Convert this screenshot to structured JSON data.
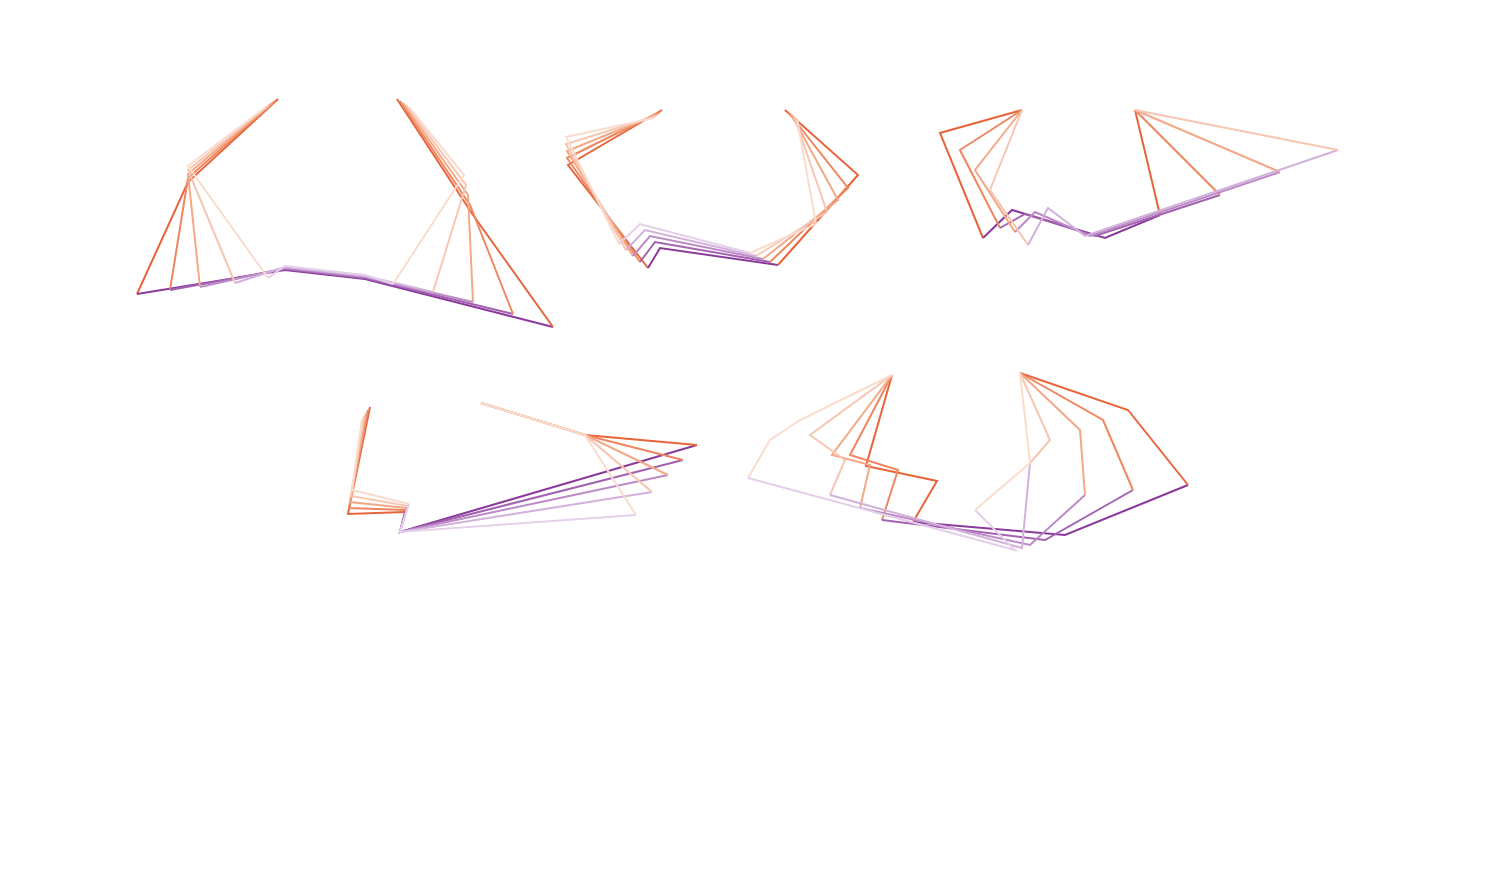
{
  "chart_data": {
    "type": "line",
    "xlim": [
      0,
      1500
    ],
    "ylim": [
      877,
      0
    ],
    "grid": false,
    "tick_labels": false,
    "series": [
      {
        "values": [
          [
            266,
            107
          ],
          [
            188,
            166
          ],
          [
            268,
            278
          ],
          [
            285,
            266
          ],
          [
            365,
            275
          ],
          [
            393,
            284
          ],
          [
            464,
            175
          ],
          [
            409,
            107
          ]
        ],
        "colors": [
          "#fadccf",
          "#fadccf",
          "#e4d0ea",
          "#e4d0ea",
          "#e4d0ea",
          "#fadccf",
          "#fadccf",
          "#fadccf"
        ]
      },
      {
        "values": [
          [
            269,
            105
          ],
          [
            188,
            170
          ],
          [
            235,
            283
          ],
          [
            285,
            267
          ],
          [
            365,
            276
          ],
          [
            433,
            292
          ],
          [
            466,
            185
          ],
          [
            406,
            105
          ]
        ],
        "colors": [
          "#f7c6b0",
          "#f7c6b0",
          "#d2b1dc",
          "#d2b1dc",
          "#d2b1dc",
          "#f7c6b0",
          "#f7c6b0",
          "#f7c6b0"
        ]
      },
      {
        "values": [
          [
            272,
            103
          ],
          [
            188,
            174
          ],
          [
            200,
            287
          ],
          [
            285,
            268
          ],
          [
            365,
            277
          ],
          [
            473,
            302
          ],
          [
            468,
            195
          ],
          [
            403,
            103
          ]
        ],
        "colors": [
          "#f3a887",
          "#f3a887",
          "#bb8ac7",
          "#bb8ac7",
          "#bb8ac7",
          "#f3a887",
          "#f3a887",
          "#f3a887"
        ]
      },
      {
        "values": [
          [
            275,
            101
          ],
          [
            188,
            178
          ],
          [
            170,
            290
          ],
          [
            285,
            269
          ],
          [
            365,
            278
          ],
          [
            513,
            314
          ],
          [
            470,
            205
          ],
          [
            400,
            101
          ]
        ],
        "colors": [
          "#ee875f",
          "#ee875f",
          "#a262b0",
          "#a262b0",
          "#a262b0",
          "#ee875f",
          "#ee875f",
          "#ee875f"
        ]
      },
      {
        "values": [
          [
            278,
            99
          ],
          [
            188,
            182
          ],
          [
            137,
            294
          ],
          [
            285,
            270
          ],
          [
            365,
            279
          ],
          [
            553,
            327
          ],
          [
            473,
            215
          ],
          [
            397,
            99
          ]
        ],
        "colors": [
          "#e8643a",
          "#e8643a",
          "#8b3a9c",
          "#8b3a9c",
          "#8b3a9c",
          "#e8643a",
          "#e8643a",
          "#e8643a"
        ]
      },
      {
        "values": [
          [
            654,
            118
          ],
          [
            566,
            137
          ],
          [
            619,
            244
          ],
          [
            640,
            224
          ],
          [
            750,
            253
          ],
          [
            816,
            224
          ],
          [
            797,
            118
          ]
        ],
        "colors": [
          "#fadccf",
          "#fadccf",
          "#e4d0ea",
          "#e4d0ea",
          "#fadccf",
          "#fadccf",
          "#fadccf"
        ]
      },
      {
        "values": [
          [
            656,
            116
          ],
          [
            566,
            144
          ],
          [
            626,
            250
          ],
          [
            645,
            230
          ],
          [
            756,
            256
          ],
          [
            827,
            212
          ],
          [
            794,
            116
          ]
        ],
        "colors": [
          "#f7c6b0",
          "#f7c6b0",
          "#d2b1dc",
          "#d2b1dc",
          "#f7c6b0",
          "#f7c6b0",
          "#f7c6b0"
        ]
      },
      {
        "values": [
          [
            658,
            114
          ],
          [
            567,
            151
          ],
          [
            633,
            256
          ],
          [
            650,
            236
          ],
          [
            763,
            259
          ],
          [
            838,
            200
          ],
          [
            791,
            114
          ]
        ],
        "colors": [
          "#f3a887",
          "#f3a887",
          "#bb8ac7",
          "#bb8ac7",
          "#f3a887",
          "#f3a887",
          "#f3a887"
        ]
      },
      {
        "values": [
          [
            660,
            112
          ],
          [
            567,
            158
          ],
          [
            640,
            262
          ],
          [
            655,
            242
          ],
          [
            770,
            262
          ],
          [
            848,
            188
          ],
          [
            788,
            112
          ]
        ],
        "colors": [
          "#ee875f",
          "#ee875f",
          "#a262b0",
          "#a262b0",
          "#ee875f",
          "#ee875f",
          "#ee875f"
        ]
      },
      {
        "values": [
          [
            662,
            110
          ],
          [
            568,
            165
          ],
          [
            648,
            268
          ],
          [
            660,
            248
          ],
          [
            778,
            265
          ],
          [
            858,
            175
          ],
          [
            785,
            110
          ]
        ],
        "colors": [
          "#e8643a",
          "#e8643a",
          "#8b3a9c",
          "#8b3a9c",
          "#e8643a",
          "#e8643a",
          "#e8643a"
        ]
      },
      {
        "values": [
          [
            1022,
            110
          ],
          [
            990,
            190
          ],
          [
            1028,
            245
          ],
          [
            1048,
            208
          ],
          [
            1085,
            236
          ],
          [
            1338,
            150
          ],
          [
            1135,
            110
          ]
        ],
        "colors": [
          "#f7c6b0",
          "#f7c6b0",
          "#d2b1dc",
          "#d2b1dc",
          "#d2b1dc",
          "#f7c6b0",
          "#f7c6b0"
        ]
      },
      {
        "values": [
          [
            1022,
            110
          ],
          [
            975,
            170
          ],
          [
            1015,
            232
          ],
          [
            1035,
            212
          ],
          [
            1090,
            236
          ],
          [
            1280,
            172
          ],
          [
            1135,
            110
          ]
        ],
        "colors": [
          "#f3a887",
          "#f3a887",
          "#bb8ac7",
          "#bb8ac7",
          "#bb8ac7",
          "#f3a887",
          "#f3a887"
        ]
      },
      {
        "values": [
          [
            1022,
            110
          ],
          [
            960,
            150
          ],
          [
            1000,
            228
          ],
          [
            1025,
            214
          ],
          [
            1095,
            236
          ],
          [
            1220,
            195
          ],
          [
            1135,
            110
          ]
        ],
        "colors": [
          "#ee875f",
          "#ee875f",
          "#a262b0",
          "#a262b0",
          "#a262b0",
          "#ee875f",
          "#ee875f"
        ]
      },
      {
        "values": [
          [
            1022,
            110
          ],
          [
            940,
            133
          ],
          [
            983,
            238
          ],
          [
            1012,
            210
          ],
          [
            1105,
            238
          ],
          [
            1160,
            215
          ],
          [
            1135,
            110
          ]
        ],
        "colors": [
          "#e8643a",
          "#e8643a",
          "#8b3a9c",
          "#8b3a9c",
          "#8b3a9c",
          "#e8643a",
          "#e8643a"
        ]
      },
      {
        "values": [
          [
            362,
            419
          ],
          [
            352,
            490
          ],
          [
            409,
            504
          ],
          [
            400,
            532
          ],
          [
            636,
            515
          ],
          [
            585,
            435
          ],
          [
            481,
            403
          ]
        ],
        "colors": [
          "#fadccf",
          "#fadccf",
          "#e4d0ea",
          "#e4d0ea",
          "#fadccf",
          "#fadccf",
          "#fadccf"
        ]
      },
      {
        "values": [
          [
            364,
            416
          ],
          [
            351,
            496
          ],
          [
            408,
            506
          ],
          [
            400,
            532
          ],
          [
            652,
            492
          ],
          [
            585,
            435
          ],
          [
            481,
            403
          ]
        ],
        "colors": [
          "#f7c6b0",
          "#f7c6b0",
          "#d2b1dc",
          "#d2b1dc",
          "#f7c6b0",
          "#f7c6b0",
          "#f7c6b0"
        ]
      },
      {
        "values": [
          [
            366,
            413
          ],
          [
            350,
            502
          ],
          [
            407,
            508
          ],
          [
            400,
            532
          ],
          [
            668,
            475
          ],
          [
            585,
            435
          ],
          [
            481,
            403
          ]
        ],
        "colors": [
          "#f3a887",
          "#f3a887",
          "#bb8ac7",
          "#bb8ac7",
          "#f3a887",
          "#f3a887",
          "#f3a887"
        ]
      },
      {
        "values": [
          [
            368,
            410
          ],
          [
            349,
            508
          ],
          [
            406,
            510
          ],
          [
            400,
            532
          ],
          [
            683,
            460
          ],
          [
            585,
            435
          ],
          [
            481,
            403
          ]
        ],
        "colors": [
          "#ee875f",
          "#ee875f",
          "#a262b0",
          "#a262b0",
          "#ee875f",
          "#ee875f",
          "#ee875f"
        ]
      },
      {
        "values": [
          [
            370,
            407
          ],
          [
            348,
            514
          ],
          [
            405,
            512
          ],
          [
            400,
            532
          ],
          [
            697,
            445
          ],
          [
            585,
            435
          ],
          [
            481,
            403
          ]
        ],
        "colors": [
          "#e8643a",
          "#e8643a",
          "#8b3a9c",
          "#8b3a9c",
          "#e8643a",
          "#e8643a",
          "#e8643a"
        ]
      },
      {
        "values": [
          [
            892,
            375
          ],
          [
            800,
            420
          ],
          [
            770,
            440
          ],
          [
            748,
            478
          ],
          [
            1015,
            550
          ],
          [
            975,
            510
          ],
          [
            1030,
            463
          ],
          [
            1020,
            373
          ]
        ],
        "colors": [
          "#fadccf",
          "#fadccf",
          "#fadccf",
          "#e4d0ea",
          "#e4d0ea",
          "#fadccf",
          "#fadccf",
          "#fadccf"
        ]
      },
      {
        "values": [
          [
            892,
            375
          ],
          [
            810,
            435
          ],
          [
            845,
            460
          ],
          [
            830,
            495
          ],
          [
            1022,
            548
          ],
          [
            1030,
            463
          ],
          [
            1050,
            440
          ],
          [
            1020,
            373
          ]
        ],
        "colors": [
          "#f7c6b0",
          "#f7c6b0",
          "#f7c6b0",
          "#d2b1dc",
          "#d2b1dc",
          "#f7c6b0",
          "#f7c6b0",
          "#f7c6b0"
        ]
      },
      {
        "values": [
          [
            892,
            375
          ],
          [
            832,
            455
          ],
          [
            870,
            465
          ],
          [
            860,
            508
          ],
          [
            1030,
            545
          ],
          [
            1085,
            495
          ],
          [
            1080,
            430
          ],
          [
            1020,
            373
          ]
        ],
        "colors": [
          "#f3a887",
          "#f3a887",
          "#f3a887",
          "#bb8ac7",
          "#bb8ac7",
          "#f3a887",
          "#f3a887",
          "#f3a887"
        ]
      },
      {
        "values": [
          [
            892,
            375
          ],
          [
            850,
            455
          ],
          [
            898,
            470
          ],
          [
            882,
            520
          ],
          [
            1045,
            540
          ],
          [
            1133,
            490
          ],
          [
            1103,
            420
          ],
          [
            1020,
            373
          ]
        ],
        "colors": [
          "#ee875f",
          "#ee875f",
          "#ee875f",
          "#a262b0",
          "#a262b0",
          "#ee875f",
          "#ee875f",
          "#ee875f"
        ]
      },
      {
        "values": [
          [
            892,
            375
          ],
          [
            866,
            466
          ],
          [
            937,
            481
          ],
          [
            913,
            522
          ],
          [
            1065,
            535
          ],
          [
            1188,
            485
          ],
          [
            1128,
            410
          ],
          [
            1020,
            373
          ]
        ],
        "colors": [
          "#e8643a",
          "#e8643a",
          "#e8643a",
          "#8b3a9c",
          "#8b3a9c",
          "#e8643a",
          "#e8643a",
          "#e8643a"
        ]
      }
    ]
  }
}
